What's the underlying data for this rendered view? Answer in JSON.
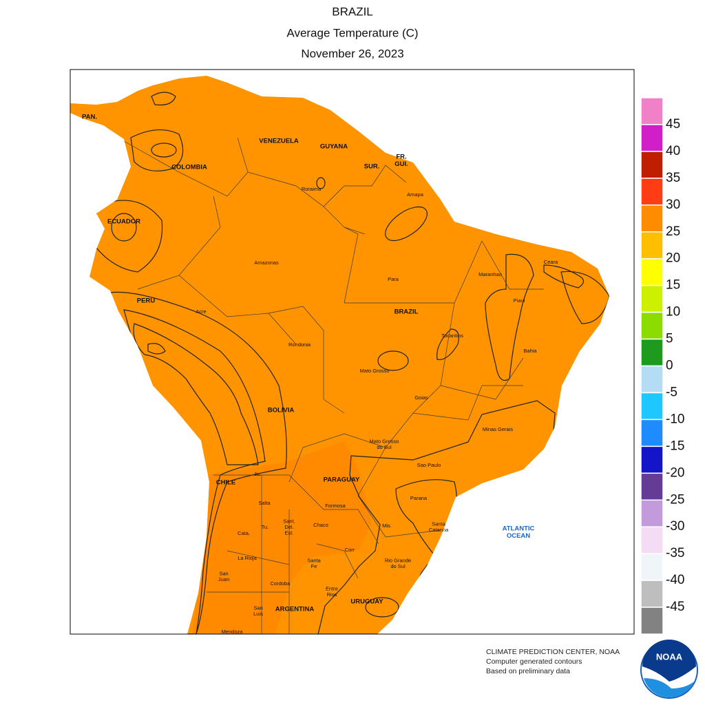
{
  "header": {
    "title": "BRAZIL",
    "subtitle": "Average Temperature (C)",
    "date": "November 26, 2023"
  },
  "map": {
    "labels": [
      [
        "PAN."
      ],
      [
        "VENEZUELA"
      ],
      [
        "GUYANA"
      ],
      [
        "SUR."
      ],
      [
        "FR.",
        "GUI."
      ],
      [
        "COLOMBIA"
      ],
      [
        "ECUADOR"
      ],
      [
        "PERU"
      ],
      [
        "Roraima"
      ],
      [
        "Amapa"
      ],
      [
        "Amazonas"
      ],
      [
        "Para"
      ],
      [
        "BRAZIL"
      ],
      [
        "Maranhao"
      ],
      [
        "Ceara"
      ],
      [
        "Piaui"
      ],
      [
        "Acre"
      ],
      [
        "Rondonia"
      ],
      [
        "Tocantins"
      ],
      [
        "Bahia"
      ],
      [
        "Mato Grosso"
      ],
      [
        "Goias"
      ],
      [
        "BOLIVIA"
      ],
      [
        "Minas Gerais"
      ],
      [
        "Mato Grosso",
        "do Sul"
      ],
      [
        "Sao Paulo"
      ],
      [
        "PARAGUAY"
      ],
      [
        "CHILE"
      ],
      [
        "Ju."
      ],
      [
        "Salta"
      ],
      [
        "Formosa"
      ],
      [
        "Parana"
      ],
      [
        "Tu."
      ],
      [
        "Sant.",
        "Del.",
        "Est."
      ],
      [
        "Chaco"
      ],
      [
        "Mis."
      ],
      [
        "Santa",
        "Catarina"
      ],
      [
        "Cata."
      ],
      [
        "Corr"
      ],
      [
        "Rio Grande",
        "do Sul"
      ],
      [
        "La Rioja"
      ],
      [
        "Santa",
        "Fe"
      ],
      [
        "San",
        "Juan"
      ],
      [
        "Cordoba"
      ],
      [
        "Entre",
        "Rios"
      ],
      [
        "URUGUAY"
      ],
      [
        "ARGENTINA"
      ],
      [
        "San",
        "Luis"
      ],
      [
        "Mendoza"
      ],
      [
        "ATLANTIC",
        "OCEAN"
      ]
    ]
  },
  "legend": {
    "colors": [
      "#f080c8",
      "#d21ec8",
      "#c01e00",
      "#ff3c14",
      "#ff8c00",
      "#ffbe00",
      "#ffff00",
      "#cdf000",
      "#8cdc00",
      "#1e9b1e",
      "#b4dcf5",
      "#1ec8ff",
      "#1e8cff",
      "#1414c8",
      "#643c96",
      "#c39bdc",
      "#f5dcf5",
      "#f0f5f9",
      "#bebebe",
      "#828282"
    ],
    "ticks": [
      45,
      40,
      35,
      30,
      25,
      20,
      15,
      10,
      5,
      0,
      -5,
      -10,
      -15,
      -20,
      -25,
      -30,
      -35,
      -40,
      -45
    ]
  },
  "footer": {
    "lines": [
      "CLIMATE PREDICTION CENTER, NOAA",
      "Computer generated contours",
      "Based on preliminary data"
    ]
  },
  "logo": "NOAA"
}
